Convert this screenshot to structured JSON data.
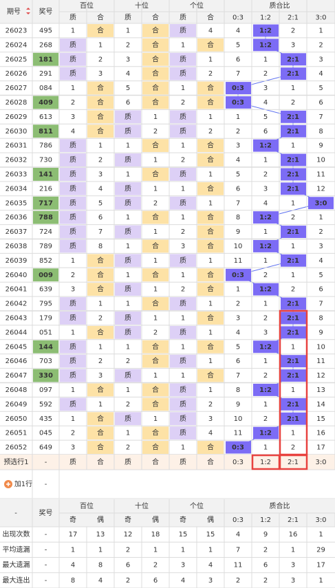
{
  "header": {
    "period": "期号",
    "number": "奖号",
    "groups": [
      "百位",
      "十位",
      "个位",
      "质合比"
    ],
    "sub": [
      "质",
      "合",
      "质",
      "合",
      "质",
      "合",
      "0:3",
      "1:2",
      "2:1",
      "3:0"
    ]
  },
  "rows": [
    {
      "period": "26023",
      "number": "495",
      "cells": [
        1,
        "合",
        1,
        "合",
        "质",
        4,
        4,
        "1:2",
        2,
        1
      ]
    },
    {
      "period": "26024",
      "number": "268",
      "cells": [
        "质",
        1,
        2,
        "合",
        1,
        "合",
        5,
        "1:2",
        3,
        2
      ]
    },
    {
      "period": "26025",
      "number": "181",
      "highlight": true,
      "cells": [
        "质",
        2,
        3,
        "合",
        "质",
        1,
        6,
        1,
        "2:1",
        3
      ]
    },
    {
      "period": "26026",
      "number": "291",
      "cells": [
        "质",
        3,
        4,
        "合",
        "质",
        2,
        7,
        2,
        "2:1",
        4
      ]
    },
    {
      "period": "26027",
      "number": "084",
      "cells": [
        1,
        "合",
        5,
        "合",
        1,
        "合",
        "0:3",
        3,
        1,
        5
      ]
    },
    {
      "period": "26028",
      "number": "409",
      "highlight": true,
      "cells": [
        2,
        "合",
        6,
        "合",
        2,
        "合",
        "0:3",
        4,
        2,
        6
      ]
    },
    {
      "period": "26029",
      "number": "613",
      "cells": [
        3,
        "合",
        "质",
        1,
        "质",
        1,
        1,
        5,
        "2:1",
        7
      ]
    },
    {
      "period": "26030",
      "number": "811",
      "highlight": true,
      "cells": [
        4,
        "合",
        "质",
        2,
        "质",
        2,
        2,
        6,
        "2:1",
        8
      ]
    },
    {
      "period": "26031",
      "number": "786",
      "cells": [
        "质",
        1,
        1,
        "合",
        1,
        "合",
        3,
        "1:2",
        1,
        9
      ]
    },
    {
      "period": "26032",
      "number": "730",
      "cells": [
        "质",
        2,
        "质",
        1,
        2,
        "合",
        4,
        1,
        "2:1",
        10
      ]
    },
    {
      "period": "26033",
      "number": "141",
      "highlight": true,
      "cells": [
        "质",
        3,
        1,
        "合",
        "质",
        1,
        5,
        2,
        "2:1",
        11
      ]
    },
    {
      "period": "26034",
      "number": "216",
      "cells": [
        "质",
        4,
        "质",
        1,
        1,
        "合",
        6,
        3,
        "2:1",
        12
      ]
    },
    {
      "period": "26035",
      "number": "717",
      "highlight": true,
      "cells": [
        "质",
        5,
        "质",
        2,
        "质",
        1,
        7,
        4,
        1,
        "3:0"
      ]
    },
    {
      "period": "26036",
      "number": "788",
      "highlight": true,
      "cells": [
        "质",
        6,
        1,
        "合",
        1,
        "合",
        8,
        "1:2",
        2,
        1
      ]
    },
    {
      "period": "26037",
      "number": "724",
      "cells": [
        "质",
        7,
        "质",
        1,
        2,
        "合",
        9,
        1,
        "2:1",
        2
      ]
    },
    {
      "period": "26038",
      "number": "789",
      "cells": [
        "质",
        8,
        1,
        "合",
        3,
        "合",
        10,
        "1:2",
        1,
        3
      ]
    },
    {
      "period": "26039",
      "number": "852",
      "cells": [
        1,
        "合",
        "质",
        1,
        "质",
        1,
        11,
        1,
        "2:1",
        4
      ]
    },
    {
      "period": "26040",
      "number": "009",
      "highlight": true,
      "cells": [
        2,
        "合",
        1,
        "合",
        1,
        "合",
        "0:3",
        2,
        1,
        5
      ]
    },
    {
      "period": "26041",
      "number": "639",
      "cells": [
        3,
        "合",
        "质",
        1,
        2,
        "合",
        1,
        "1:2",
        2,
        6
      ]
    },
    {
      "period": "26042",
      "number": "795",
      "cells": [
        "质",
        1,
        1,
        "合",
        "质",
        1,
        2,
        1,
        "2:1",
        7
      ]
    },
    {
      "period": "26043",
      "number": "179",
      "cells": [
        "质",
        2,
        "质",
        1,
        1,
        "合",
        3,
        2,
        "2:1",
        8
      ]
    },
    {
      "period": "26044",
      "number": "051",
      "cells": [
        1,
        "合",
        "质",
        2,
        "质",
        1,
        4,
        3,
        "2:1",
        9
      ]
    },
    {
      "period": "26045",
      "number": "144",
      "highlight": true,
      "cells": [
        "质",
        1,
        1,
        "合",
        1,
        "合",
        5,
        "1:2",
        1,
        10
      ]
    },
    {
      "period": "26046",
      "number": "703",
      "cells": [
        "质",
        2,
        2,
        "合",
        "质",
        1,
        6,
        1,
        "2:1",
        11
      ]
    },
    {
      "period": "26047",
      "number": "330",
      "highlight": true,
      "cells": [
        "质",
        3,
        "质",
        1,
        1,
        "合",
        7,
        2,
        "2:1",
        12
      ]
    },
    {
      "period": "26048",
      "number": "097",
      "cells": [
        1,
        "合",
        1,
        "合",
        "质",
        1,
        8,
        "1:2",
        1,
        13
      ]
    },
    {
      "period": "26049",
      "number": "592",
      "cells": [
        "质",
        1,
        2,
        "合",
        "质",
        2,
        9,
        1,
        "2:1",
        14
      ]
    },
    {
      "period": "26050",
      "number": "435",
      "cells": [
        1,
        "合",
        "质",
        1,
        "质",
        3,
        10,
        2,
        "2:1",
        15
      ]
    },
    {
      "period": "26051",
      "number": "045",
      "cells": [
        2,
        "合",
        1,
        "合",
        "质",
        4,
        11,
        "1:2",
        1,
        16
      ]
    },
    {
      "period": "26052",
      "number": "649",
      "cells": [
        3,
        "合",
        2,
        "合",
        1,
        "合",
        "0:3",
        1,
        2,
        17
      ]
    }
  ],
  "preview": {
    "label": "预选行1",
    "number": "-",
    "cells": [
      "质",
      "合",
      "质",
      "合",
      "质",
      "合",
      "0:3",
      "1:2",
      "2:1",
      "3:0"
    ]
  },
  "add_row": {
    "label": "加1行",
    "number": "-"
  },
  "stats": {
    "header": {
      "label": "-",
      "number": "奖号",
      "groups": [
        "百位",
        "十位",
        "个位",
        "质合比"
      ],
      "sub": [
        "奇",
        "偶",
        "奇",
        "偶",
        "奇",
        "偶",
        "0:3",
        "1:2",
        "2:1",
        "3:0"
      ]
    },
    "rows": [
      {
        "label": "出现次数",
        "number": "-",
        "values": [
          17,
          13,
          12,
          18,
          15,
          15,
          4,
          9,
          16,
          1
        ]
      },
      {
        "label": "平均遗漏",
        "number": "-",
        "values": [
          1,
          1,
          2,
          1,
          1,
          1,
          7,
          2,
          1,
          29
        ]
      },
      {
        "label": "最大遗漏",
        "number": "-",
        "values": [
          4,
          8,
          6,
          2,
          3,
          4,
          11,
          6,
          3,
          17
        ]
      },
      {
        "label": "最大连出",
        "number": "-",
        "values": [
          8,
          4,
          2,
          6,
          4,
          3,
          2,
          2,
          3,
          1
        ]
      }
    ]
  }
}
